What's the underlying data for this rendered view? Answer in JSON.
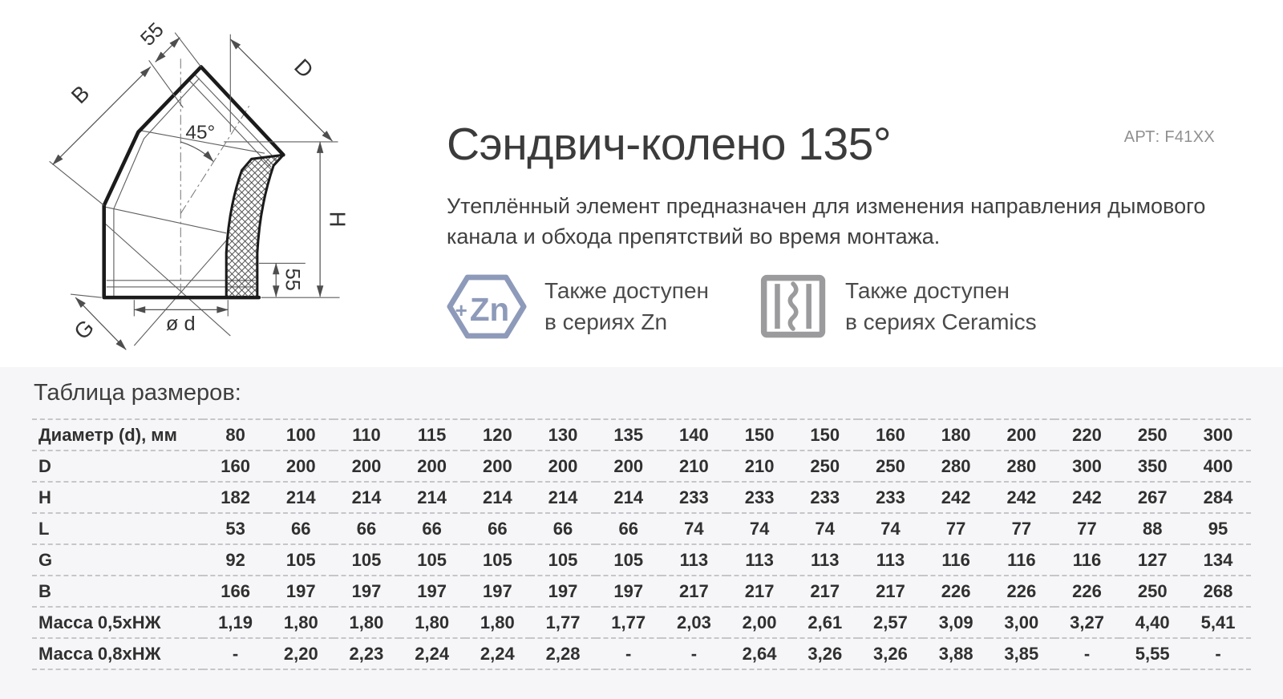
{
  "header": {
    "title": "Сэндвич-колено 135°",
    "article": "АРТ: F41XX",
    "description": "Утеплённый элемент предназначен для изменения направления дымового канала и обхода препятствий во время монтажа."
  },
  "badges": [
    {
      "icon": "zn-hexagon-icon",
      "icon_plus": "+",
      "icon_label": "Zn",
      "line1": "Также доступен",
      "line2": "в сериях Zn",
      "color": "#8d9ab9"
    },
    {
      "icon": "ceramics-icon",
      "line1": "Также доступен",
      "line2": "в сериях Ceramics",
      "color": "#9b9b9d"
    }
  ],
  "drawing": {
    "labels": {
      "dim_55_top": "55",
      "dim_B": "B",
      "dim_D": "D",
      "angle_45": "45°",
      "dim_H": "H",
      "dim_55_bottom": "55",
      "dim_diameter": "ø d",
      "dim_G": "G"
    }
  },
  "table": {
    "caption": "Таблица размеров:",
    "rows": [
      {
        "label": "Диаметр (d), мм",
        "values": [
          "80",
          "100",
          "110",
          "115",
          "120",
          "130",
          "135",
          "140",
          "150",
          "150",
          "160",
          "180",
          "200",
          "220",
          "250",
          "300"
        ]
      },
      {
        "label": "D",
        "values": [
          "160",
          "200",
          "200",
          "200",
          "200",
          "200",
          "200",
          "210",
          "210",
          "250",
          "250",
          "280",
          "280",
          "300",
          "350",
          "400"
        ]
      },
      {
        "label": "H",
        "values": [
          "182",
          "214",
          "214",
          "214",
          "214",
          "214",
          "214",
          "233",
          "233",
          "233",
          "233",
          "242",
          "242",
          "242",
          "267",
          "284"
        ]
      },
      {
        "label": "L",
        "values": [
          "53",
          "66",
          "66",
          "66",
          "66",
          "66",
          "66",
          "74",
          "74",
          "74",
          "74",
          "77",
          "77",
          "77",
          "88",
          "95"
        ]
      },
      {
        "label": "G",
        "values": [
          "92",
          "105",
          "105",
          "105",
          "105",
          "105",
          "105",
          "113",
          "113",
          "113",
          "113",
          "116",
          "116",
          "116",
          "127",
          "134"
        ]
      },
      {
        "label": "B",
        "values": [
          "166",
          "197",
          "197",
          "197",
          "197",
          "197",
          "197",
          "217",
          "217",
          "217",
          "217",
          "226",
          "226",
          "226",
          "250",
          "268"
        ]
      },
      {
        "label": "Масса 0,5хНЖ",
        "values": [
          "1,19",
          "1,80",
          "1,80",
          "1,80",
          "1,80",
          "1,77",
          "1,77",
          "2,03",
          "2,00",
          "2,61",
          "2,57",
          "3,09",
          "3,00",
          "3,27",
          "4,40",
          "5,41"
        ]
      },
      {
        "label": "Масса 0,8хНЖ",
        "values": [
          "-",
          "2,20",
          "2,23",
          "2,24",
          "2,24",
          "2,28",
          "-",
          "-",
          "2,64",
          "3,26",
          "3,26",
          "3,88",
          "3,85",
          "-",
          "5,55",
          "-"
        ]
      }
    ]
  },
  "colors": {
    "text_dark": "#3b3b3b",
    "article_gray": "#909090",
    "zn_icon": "#8d9ab9",
    "ceramics_icon": "#9b9b9d",
    "table_background": "#f6f6f8",
    "dashed_border": "#c6c6ca"
  }
}
